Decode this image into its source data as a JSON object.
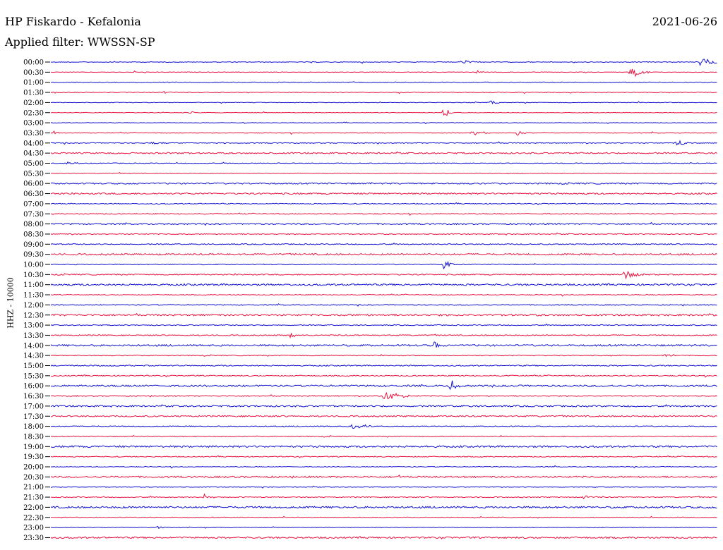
{
  "header": {
    "station": "HP Fiskardo - Kefalonia",
    "filter": "Applied filter: WWSSN-SP",
    "date": "2021-06-26",
    "channel": "HHZ - 10000"
  },
  "chart_data": {
    "type": "line",
    "title": "HP Fiskardo - Kefalonia",
    "subtitle": "Applied filter: WWSSN-SP",
    "date": "2021-06-26",
    "ylabel": "HHZ - 10000",
    "xlabel": "",
    "colors": {
      "even_row": "#1010d0",
      "odd_row": "#e8133f"
    },
    "row_labels": [
      "00:00",
      "00:30",
      "01:00",
      "01:30",
      "02:00",
      "02:30",
      "03:00",
      "03:30",
      "04:00",
      "04:30",
      "05:00",
      "05:30",
      "06:00",
      "06:30",
      "07:00",
      "07:30",
      "08:00",
      "08:30",
      "09:00",
      "09:30",
      "10:00",
      "10:30",
      "11:00",
      "11:30",
      "12:00",
      "12:30",
      "13:00",
      "13:30",
      "14:00",
      "14:30",
      "15:00",
      "15:30",
      "16:00",
      "16:30",
      "17:00",
      "17:30",
      "18:00",
      "18:30",
      "19:00",
      "19:30",
      "20:00",
      "20:30",
      "21:00",
      "21:30",
      "22:00",
      "22:30",
      "23:00",
      "23:30"
    ],
    "noise_level": [
      0.6,
      0.5,
      0.6,
      0.6,
      0.5,
      0.5,
      0.5,
      0.6,
      0.7,
      1.2,
      0.6,
      0.6,
      1.2,
      1.3,
      0.8,
      0.8,
      1.2,
      0.8,
      0.9,
      1.4,
      0.8,
      1.0,
      1.5,
      0.7,
      0.8,
      1.5,
      0.8,
      0.9,
      1.5,
      0.7,
      1.0,
      0.9,
      1.5,
      0.9,
      1.4,
      1.2,
      0.8,
      0.8,
      1.6,
      0.8,
      0.6,
      1.4,
      0.6,
      0.8,
      1.6,
      0.6,
      0.6,
      1.4
    ],
    "events": [
      {
        "row": 0,
        "x": 0.62,
        "amp": 3,
        "dur": 0.02
      },
      {
        "row": 0,
        "x": 0.975,
        "amp": 8,
        "dur": 0.02
      },
      {
        "row": 1,
        "x": 0.64,
        "amp": 3,
        "dur": 0.01
      },
      {
        "row": 1,
        "x": 0.87,
        "amp": 10,
        "dur": 0.02
      },
      {
        "row": 3,
        "x": 0.17,
        "amp": 2,
        "dur": 0.01
      },
      {
        "row": 4,
        "x": 0.66,
        "amp": 3,
        "dur": 0.01
      },
      {
        "row": 5,
        "x": 0.59,
        "amp": 11,
        "dur": 0.005
      },
      {
        "row": 5,
        "x": 0.21,
        "amp": 2,
        "dur": 0.005
      },
      {
        "row": 7,
        "x": 0.63,
        "amp": 4,
        "dur": 0.03
      },
      {
        "row": 7,
        "x": 0.7,
        "amp": 4,
        "dur": 0.01
      },
      {
        "row": 7,
        "x": 0.005,
        "amp": 3,
        "dur": 0.005
      },
      {
        "row": 8,
        "x": 0.94,
        "amp": 6,
        "dur": 0.01
      },
      {
        "row": 8,
        "x": 0.15,
        "amp": 2,
        "dur": 0.02
      },
      {
        "row": 10,
        "x": 0.02,
        "amp": 2,
        "dur": 0.02
      },
      {
        "row": 20,
        "x": 0.59,
        "amp": 7,
        "dur": 0.01
      },
      {
        "row": 21,
        "x": 0.86,
        "amp": 8,
        "dur": 0.02
      },
      {
        "row": 27,
        "x": 0.36,
        "amp": 4,
        "dur": 0.01
      },
      {
        "row": 28,
        "x": 0.575,
        "amp": 8,
        "dur": 0.005
      },
      {
        "row": 29,
        "x": 0.92,
        "amp": 2,
        "dur": 0.03
      },
      {
        "row": 32,
        "x": 0.6,
        "amp": 9,
        "dur": 0.01
      },
      {
        "row": 33,
        "x": 0.5,
        "amp": 9,
        "dur": 0.03
      },
      {
        "row": 36,
        "x": 0.45,
        "amp": 5,
        "dur": 0.03
      },
      {
        "row": 41,
        "x": 0.52,
        "amp": 3,
        "dur": 0.005
      },
      {
        "row": 43,
        "x": 0.23,
        "amp": 4,
        "dur": 0.01
      },
      {
        "row": 43,
        "x": 0.8,
        "amp": 3,
        "dur": 0.01
      },
      {
        "row": 46,
        "x": 0.16,
        "amp": 2,
        "dur": 0.01
      }
    ]
  }
}
